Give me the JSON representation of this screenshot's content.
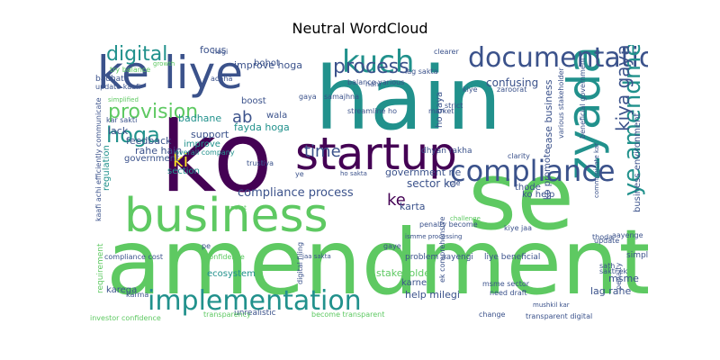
{
  "title": "Neutral WordCloud",
  "palette": [
    "#440154",
    "#3b528b",
    "#21918c",
    "#5ec962",
    "#fde725"
  ],
  "words": [
    {
      "text": "amendment",
      "c": "#5ec962"
    },
    {
      "text": "hain",
      "c": "#21918c"
    },
    {
      "text": "ko",
      "c": "#440154"
    },
    {
      "text": "se",
      "c": "#5ec962"
    },
    {
      "text": "startup",
      "c": "#440154"
    },
    {
      "text": "business",
      "c": "#5ec962"
    },
    {
      "text": "ke liye",
      "c": "#3b528b"
    },
    {
      "text": "zyada",
      "c": "#21918c"
    },
    {
      "text": "compliance",
      "c": "#3b528b"
    },
    {
      "text": "implementation",
      "c": "#21918c"
    },
    {
      "text": "documentation",
      "c": "#3b528b"
    },
    {
      "text": "kuch",
      "c": "#21918c"
    },
    {
      "text": "digital",
      "c": "#21918c"
    },
    {
      "text": "provision",
      "c": "#5ec962"
    },
    {
      "text": "hoga",
      "c": "#21918c"
    },
    {
      "text": "process",
      "c": "#3b528b"
    },
    {
      "text": "ye amendment",
      "c": "#21918c"
    },
    {
      "text": "kiya gaya",
      "c": "#3b528b"
    },
    {
      "text": "ki",
      "c": "#fde725"
    },
    {
      "text": "ab",
      "c": "#3b528b"
    },
    {
      "text": "time",
      "c": "#3b528b"
    },
    {
      "text": "ke",
      "c": "#440154"
    },
    {
      "text": "compliance process",
      "c": "#3b528b"
    },
    {
      "text": "sector ko",
      "c": "#3b528b"
    },
    {
      "text": "government ne",
      "c": "#3b528b"
    },
    {
      "text": "karta",
      "c": "#3b528b"
    },
    {
      "text": "improve hoga",
      "c": "#3b528b"
    },
    {
      "text": "focus",
      "c": "#3b528b"
    },
    {
      "text": "bohot",
      "c": "#3b528b"
    },
    {
      "text": "boost",
      "c": "#3b528b"
    },
    {
      "text": "wala",
      "c": "#3b528b"
    },
    {
      "text": "fayda hoga",
      "c": "#21918c"
    },
    {
      "text": "badhane",
      "c": "#21918c"
    },
    {
      "text": "support",
      "c": "#3b528b"
    },
    {
      "text": "lack",
      "c": "#3b528b"
    },
    {
      "text": "improve",
      "c": "#21918c"
    },
    {
      "text": "feedback",
      "c": "#3b528b"
    },
    {
      "text": "rahe hain",
      "c": "#3b528b"
    },
    {
      "text": "government",
      "c": "#3b528b"
    },
    {
      "text": "section",
      "c": "#21918c"
    },
    {
      "text": "regulation",
      "c": "#21918c"
    },
    {
      "text": "confusing",
      "c": "#3b528b"
    },
    {
      "text": "ho gaya",
      "c": "#3b528b"
    },
    {
      "text": "ease business",
      "c": "#3b528b"
    },
    {
      "text": "ko promote",
      "c": "#3b528b"
    },
    {
      "text": "thode",
      "c": "#3b528b"
    },
    {
      "text": "ko help",
      "c": "#3b528b"
    },
    {
      "text": "business environment",
      "c": "#3b528b"
    },
    {
      "text": "stakeholder",
      "c": "#5ec962"
    },
    {
      "text": "karne",
      "c": "#3b528b"
    },
    {
      "text": "help milegi",
      "c": "#3b528b"
    },
    {
      "text": "msme",
      "c": "#3b528b"
    },
    {
      "text": "lag rahe",
      "c": "#3b528b"
    },
    {
      "text": "karega",
      "c": "#3b528b"
    },
    {
      "text": "ecosystem",
      "c": "#21918c"
    },
    {
      "text": "unrealistic",
      "c": "#3b528b"
    },
    {
      "text": "transparency",
      "c": "#5ec962"
    },
    {
      "text": "investor confidence",
      "c": "#5ec962"
    },
    {
      "text": "liye beneficial",
      "c": "#3b528b"
    },
    {
      "text": "problem aayengi",
      "c": "#3b528b"
    },
    {
      "text": "msme sector",
      "c": "#3b528b"
    },
    {
      "text": "transparent digital",
      "c": "#3b528b"
    },
    {
      "text": "change",
      "c": "#3b528b"
    },
    {
      "text": "compliance cost",
      "c": "#3b528b"
    },
    {
      "text": "confidence",
      "c": "#5ec962"
    },
    {
      "text": "requirement",
      "c": "#5ec962"
    },
    {
      "text": "simplify",
      "c": "#3b528b"
    },
    {
      "text": "update",
      "c": "#3b528b"
    },
    {
      "text": "sakti ek",
      "c": "#3b528b"
    },
    {
      "text": "thoda",
      "c": "#3b528b"
    },
    {
      "text": "penalty",
      "c": "#3b528b"
    },
    {
      "text": "overall company",
      "c": "#21918c"
    },
    {
      "text": "trust",
      "c": "#3b528b"
    },
    {
      "text": "dhyan rakha",
      "c": "#3b528b"
    },
    {
      "text": "streamline ho",
      "c": "#3b528b"
    },
    {
      "text": "various stakeholder",
      "c": "#3b528b"
    },
    {
      "text": "beneficial government",
      "c": "#3b528b"
    },
    {
      "text": "balance various",
      "c": "#3b528b"
    },
    {
      "text": "strict",
      "c": "#3b528b"
    },
    {
      "text": "market",
      "c": "#3b528b"
    },
    {
      "text": "clarity",
      "c": "#3b528b"
    },
    {
      "text": "kiye",
      "c": "#3b528b"
    },
    {
      "text": "zaroorat",
      "c": "#3b528b"
    },
    {
      "text": "clearer",
      "c": "#3b528b"
    },
    {
      "text": "nahi",
      "c": "#3b528b"
    },
    {
      "text": "lag sakta",
      "c": "#3b528b"
    },
    {
      "text": "hogi",
      "c": "#3b528b"
    },
    {
      "text": "samajhna",
      "c": "#3b528b"
    },
    {
      "text": "gaya",
      "c": "#3b528b"
    },
    {
      "text": "try balance",
      "c": "#5ec962"
    },
    {
      "text": "badhata",
      "c": "#3b528b"
    },
    {
      "text": "update kaafi",
      "c": "#3b528b"
    },
    {
      "text": "achha",
      "c": "#3b528b"
    },
    {
      "text": "simplified",
      "c": "#5ec962"
    },
    {
      "text": "kar sakti",
      "c": "#3b528b"
    },
    {
      "text": "kaafi achi efficiently communicate",
      "c": "#3b528b"
    },
    {
      "text": "liya",
      "c": "#3b528b"
    },
    {
      "text": "rule",
      "c": "#3b528b"
    },
    {
      "text": "ye",
      "c": "#3b528b"
    },
    {
      "text": "need draft",
      "c": "#3b528b"
    },
    {
      "text": "karma",
      "c": "#3b528b"
    },
    {
      "text": "sath",
      "c": "#3b528b"
    },
    {
      "text": "aayenge",
      "c": "#3b528b"
    },
    {
      "text": "gaye",
      "c": "#3b528b"
    },
    {
      "text": "pe",
      "c": "#3b528b"
    },
    {
      "text": "penalty become",
      "c": "#3b528b"
    },
    {
      "text": "kiye jaa",
      "c": "#3b528b"
    },
    {
      "text": "ek comprehensive",
      "c": "#3b528b"
    },
    {
      "text": "digital filing",
      "c": "#3b528b"
    },
    {
      "text": "ismme processing",
      "c": "#3b528b"
    },
    {
      "text": "mushkil kar",
      "c": "#3b528b"
    },
    {
      "text": "communicate kar",
      "c": "#3b528b"
    },
    {
      "text": "growth",
      "c": "#5ec962"
    },
    {
      "text": "point",
      "c": "#5ec962"
    },
    {
      "text": "challenge",
      "c": "#5ec962"
    },
    {
      "text": "ho sakta",
      "c": "#3b528b"
    },
    {
      "text": "jaa sakta",
      "c": "#3b528b"
    },
    {
      "text": "become transparent",
      "c": "#5ec962"
    }
  ]
}
